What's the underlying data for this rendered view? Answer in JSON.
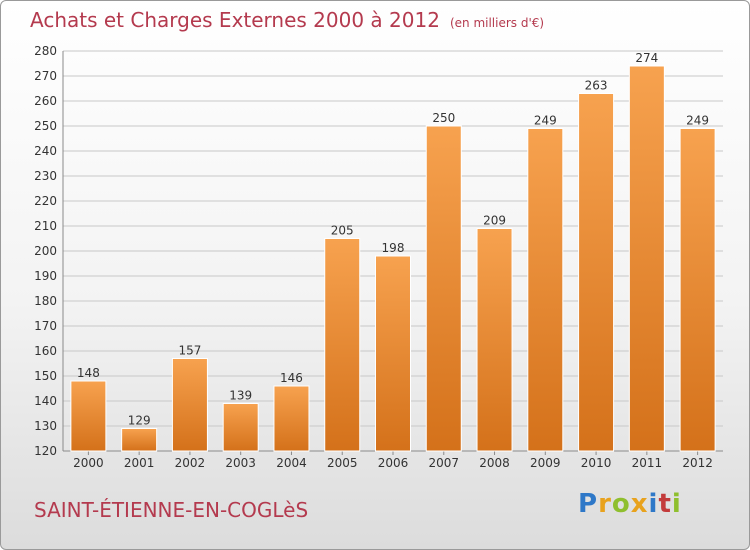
{
  "header": {
    "title": "Achats et Charges Externes 2000 à 2012",
    "unit": "(en milliers d'€)"
  },
  "footer": {
    "commune": "SAINT-ÉTIENNE-EN-COGLèS",
    "logo_text": "Proxiti"
  },
  "colors": {
    "bar_top": "#f7a24f",
    "bar_bottom": "#d4711a",
    "title": "#b43a4e",
    "logo": [
      "#2e78c8",
      "#e8a21d",
      "#8fbf2e",
      "#e8a21d",
      "#2e78c8",
      "#c33b3b",
      "#8fbf2e"
    ]
  },
  "chart_data": {
    "type": "bar",
    "categories": [
      "2000",
      "2001",
      "2002",
      "2003",
      "2004",
      "2005",
      "2006",
      "2007",
      "2008",
      "2009",
      "2010",
      "2011",
      "2012"
    ],
    "values": [
      148,
      129,
      157,
      139,
      146,
      205,
      198,
      250,
      209,
      249,
      263,
      274,
      249
    ],
    "ylim": [
      120,
      280
    ],
    "yticks": [
      120,
      130,
      140,
      150,
      160,
      170,
      180,
      190,
      200,
      210,
      220,
      230,
      240,
      250,
      260,
      270,
      280
    ],
    "grid": true,
    "legend": "none"
  }
}
